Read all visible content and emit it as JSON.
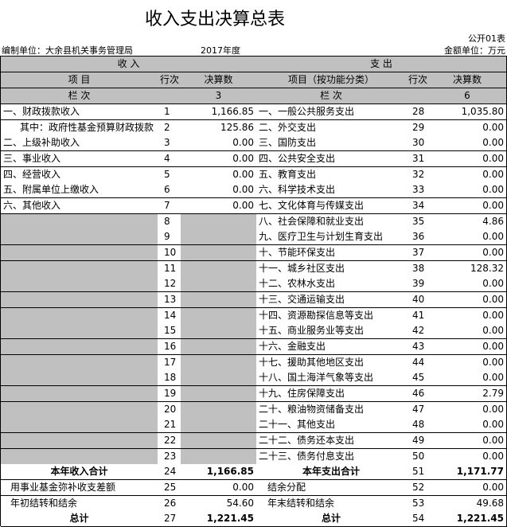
{
  "header": {
    "title": "收入支出决算总表",
    "form_no": "公开01表",
    "unit_org": "编制单位：大余县机关事务管理局",
    "year": "2017年度",
    "amount_unit": "金额单位：万元"
  },
  "table": {
    "section_headers": [
      "收          入",
      "支          出"
    ],
    "column_headers": [
      "项          目",
      "行次",
      "决算数",
      "项目（按功能分类）",
      "行次",
      "决算数"
    ],
    "column_numbers": [
      "栏          次",
      "3",
      "栏          次",
      "6"
    ],
    "rows": [
      [
        "一、财政拨款收入",
        1,
        "1,166.85",
        "一、一般公共服务支出",
        28,
        "1,035.80"
      ],
      [
        "其中：政府性基金预算财政拨款",
        2,
        "125.86",
        "二、外交支出",
        29,
        "0.00"
      ],
      [
        "二、上级补助收入",
        3,
        "0.00",
        "三、国防支出",
        30,
        "0.00"
      ],
      [
        "三、事业收入",
        4,
        "0.00",
        "四、公共安全支出",
        31,
        "0.00"
      ],
      [
        "四、经营收入",
        5,
        "0.00",
        "五、教育支出",
        32,
        "0.00"
      ],
      [
        "五、附属单位上缴收入",
        6,
        "0.00",
        "六、科学技术支出",
        33,
        "0.00"
      ],
      [
        "六、其他收入",
        7,
        "0.00",
        "七、文化体育与传媒支出",
        34,
        "0.00"
      ],
      [
        null,
        8,
        null,
        "八、社会保障和就业支出",
        35,
        "4.86"
      ],
      [
        null,
        9,
        null,
        "九、医疗卫生与计划生育支出",
        36,
        "0.00"
      ],
      [
        null,
        10,
        null,
        "十、节能环保支出",
        37,
        "0.00"
      ],
      [
        null,
        11,
        null,
        "十一、城乡社区支出",
        38,
        "128.32"
      ],
      [
        null,
        12,
        null,
        "十二、农林水支出",
        39,
        "0.00"
      ],
      [
        null,
        13,
        null,
        "十三、交通运输支出",
        40,
        "0.00"
      ],
      [
        null,
        14,
        null,
        "十四、资源勘探信息等支出",
        41,
        "0.00"
      ],
      [
        null,
        15,
        null,
        "十五、商业服务业等支出",
        42,
        "0.00"
      ],
      [
        null,
        16,
        null,
        "十六、金融支出",
        43,
        "0.00"
      ],
      [
        null,
        17,
        null,
        "十七、援助其他地区支出",
        44,
        "0.00"
      ],
      [
        null,
        18,
        null,
        "十八、国土海洋气象等支出",
        45,
        "0.00"
      ],
      [
        null,
        19,
        null,
        "十九、住房保障支出",
        46,
        "2.79"
      ],
      [
        null,
        20,
        null,
        "二十、粮油物资储备支出",
        47,
        "0.00"
      ],
      [
        null,
        21,
        null,
        "二十一、其他支出",
        48,
        "0.00"
      ],
      [
        null,
        22,
        null,
        "二十二、债务还本支出",
        49,
        "0.00"
      ],
      [
        null,
        23,
        null,
        "二十三、债务付息支出",
        50,
        "0.00"
      ],
      [
        "本年收入合计",
        24,
        "1,166.85",
        "本年支出合计",
        51,
        "1,171.77"
      ],
      [
        "用事业基金弥补收支差额",
        25,
        "0.00",
        "结余分配",
        52,
        "0.00"
      ],
      [
        "年初结转和结余",
        26,
        "54.60",
        "年末结转和结余",
        53,
        "49.68"
      ],
      [
        "总计",
        27,
        "1,221.45",
        "总计",
        54,
        "1,221.45"
      ]
    ]
  }
}
